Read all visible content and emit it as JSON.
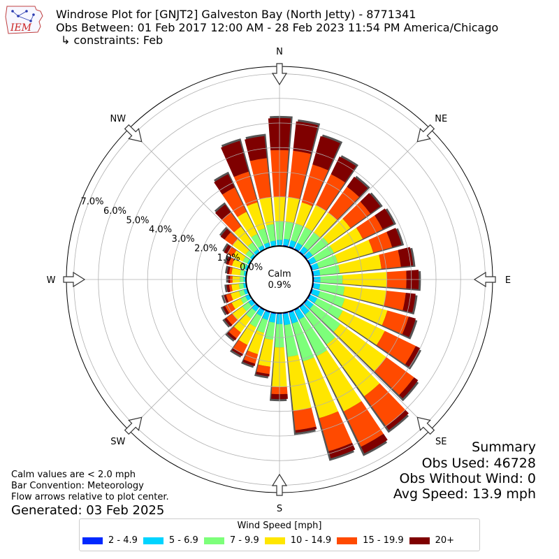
{
  "header": {
    "title": "Windrose Plot for [GNJT2] Galveston Bay (North Jetty) - 8771341",
    "obs_between": "Obs Between: 01 Feb 2017 12:00 AM - 28 Feb 2023 11:54 PM America/Chicago",
    "constraints": "↳ constraints: Feb"
  },
  "logo": {
    "text": "IEM",
    "icon": "iem-iowa-logo"
  },
  "calm": {
    "label": "Calm",
    "value": "0.9%"
  },
  "summary": {
    "title": "Summary",
    "obs_used": "Obs Used: 46728",
    "obs_without_wind": "Obs Without Wind: 0",
    "avg_speed": "Avg Speed: 13.9 mph"
  },
  "notes": {
    "calm": "Calm values are < 2.0 mph",
    "bar_convention": "Bar Convention: Meteorology",
    "flow": "Flow arrows relative to plot center."
  },
  "generated": "Generated: 03 Feb 2025",
  "legend": {
    "title": "Wind Speed [mph]",
    "items": [
      {
        "label": "2 - 4.9",
        "color": "#0028ff"
      },
      {
        "label": "5 - 6.9",
        "color": "#00d4ff"
      },
      {
        "label": "7 - 9.9",
        "color": "#7dff7a"
      },
      {
        "label": "10 - 14.9",
        "color": "#ffe600"
      },
      {
        "label": "15 - 19.9",
        "color": "#ff4a00"
      },
      {
        "label": "20+",
        "color": "#7f0000"
      }
    ]
  },
  "chart_data": {
    "type": "windrose",
    "direction_labels": [
      "N",
      "NE",
      "E",
      "SE",
      "S",
      "SW",
      "W",
      "NW"
    ],
    "radial_ticks": [
      "0.0%",
      "1.0%",
      "2.0%",
      "3.0%",
      "4.0%",
      "5.0%",
      "6.0%",
      "7.0%"
    ],
    "rlim": [
      0,
      7.3
    ],
    "calm_percent": 0.9,
    "speed_bins": [
      "2 - 4.9",
      "5 - 6.9",
      "7 - 9.9",
      "10 - 14.9",
      "15 - 19.9",
      "20+"
    ],
    "bin_colors": [
      "#0028ff",
      "#00d4ff",
      "#7dff7a",
      "#ffe600",
      "#ff4a00",
      "#7f0000"
    ],
    "directions_deg": [
      0,
      10,
      20,
      30,
      40,
      50,
      60,
      70,
      80,
      90,
      100,
      110,
      120,
      130,
      140,
      150,
      160,
      170,
      180,
      190,
      200,
      210,
      220,
      230,
      240,
      250,
      260,
      270,
      280,
      290,
      300,
      310,
      320,
      330,
      340,
      350
    ],
    "cumulative_percent": [
      [
        0.03,
        0.25,
        1.0,
        2.0,
        3.9,
        5.2
      ],
      [
        0.05,
        0.3,
        1.0,
        2.0,
        3.9,
        5.1
      ],
      [
        0.05,
        0.3,
        1.0,
        1.9,
        3.5,
        4.7
      ],
      [
        0.05,
        0.3,
        1.0,
        2.0,
        3.4,
        4.2
      ],
      [
        0.05,
        0.3,
        1.0,
        2.0,
        3.3,
        3.8
      ],
      [
        0.05,
        0.3,
        1.1,
        2.2,
        3.2,
        3.7
      ],
      [
        0.05,
        0.3,
        1.1,
        2.4,
        3.3,
        3.8
      ],
      [
        0.05,
        0.3,
        1.1,
        2.6,
        3.4,
        3.8
      ],
      [
        0.05,
        0.3,
        1.1,
        2.8,
        3.6,
        4.1
      ],
      [
        0.05,
        0.3,
        1.2,
        3.0,
        3.8,
        4.3
      ],
      [
        0.05,
        0.3,
        1.3,
        3.0,
        3.8,
        4.2
      ],
      [
        0.05,
        0.35,
        1.4,
        3.2,
        4.1,
        4.4
      ],
      [
        0.05,
        0.35,
        1.5,
        3.4,
        4.8,
        5.0
      ],
      [
        0.05,
        0.35,
        1.7,
        4.0,
        5.4,
        5.6
      ],
      [
        0.05,
        0.4,
        1.9,
        4.5,
        6.0,
        6.2
      ],
      [
        0.05,
        0.45,
        2.1,
        4.6,
        6.2,
        6.5
      ],
      [
        0.05,
        0.5,
        2.1,
        4.5,
        5.9,
        6.2
      ],
      [
        0.05,
        0.5,
        1.8,
        4.0,
        4.8,
        4.9
      ],
      [
        0.05,
        0.45,
        1.4,
        3.0,
        3.3,
        3.5
      ],
      [
        0.05,
        0.4,
        1.1,
        2.2,
        2.5,
        2.6
      ],
      [
        0.05,
        0.35,
        0.9,
        1.8,
        2.2,
        2.3
      ],
      [
        0.05,
        0.3,
        0.8,
        1.6,
        2.0,
        2.1
      ],
      [
        0.05,
        0.25,
        0.6,
        1.3,
        1.6,
        1.7
      ],
      [
        0.04,
        0.2,
        0.5,
        1.0,
        1.3,
        1.4
      ],
      [
        0.03,
        0.18,
        0.4,
        0.8,
        1.1,
        1.2
      ],
      [
        0.03,
        0.15,
        0.35,
        0.7,
        0.9,
        1.0
      ],
      [
        0.02,
        0.12,
        0.3,
        0.6,
        0.7,
        0.8
      ],
      [
        0.02,
        0.1,
        0.25,
        0.55,
        0.65,
        0.72
      ],
      [
        0.02,
        0.1,
        0.25,
        0.6,
        0.7,
        0.78
      ],
      [
        0.02,
        0.1,
        0.25,
        0.65,
        0.8,
        0.9
      ],
      [
        0.02,
        0.1,
        0.3,
        0.75,
        1.0,
        1.15
      ],
      [
        0.02,
        0.12,
        0.35,
        1.0,
        1.4,
        1.6
      ],
      [
        0.03,
        0.15,
        0.5,
        1.3,
        2.0,
        2.4
      ],
      [
        0.03,
        0.18,
        0.7,
        1.7,
        2.8,
        3.4
      ],
      [
        0.03,
        0.2,
        0.8,
        1.9,
        3.2,
        4.5
      ],
      [
        0.03,
        0.22,
        0.9,
        2.0,
        3.6,
        4.5
      ]
    ]
  }
}
